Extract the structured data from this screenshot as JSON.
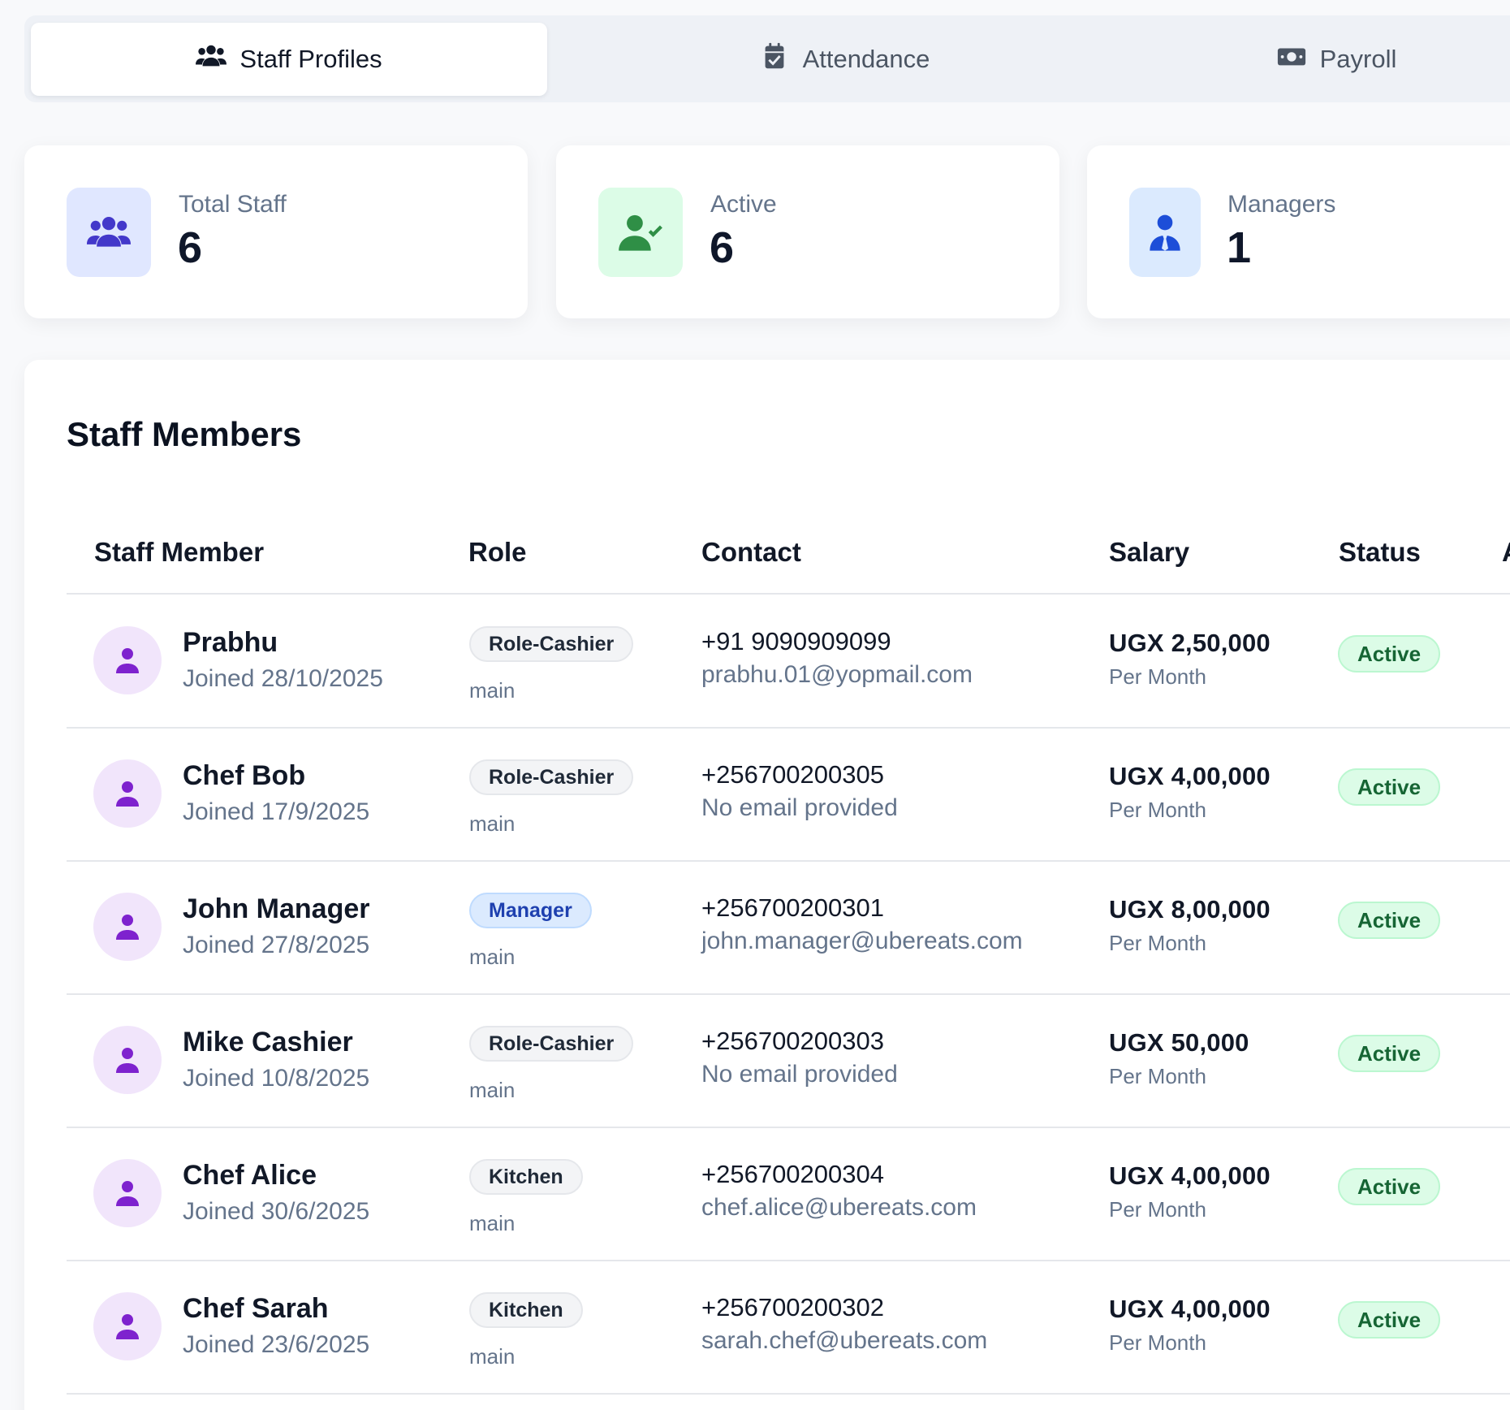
{
  "tabs": [
    {
      "label": "Staff Profiles",
      "icon": "users-icon",
      "active": true
    },
    {
      "label": "Attendance",
      "icon": "calendar-check-icon",
      "active": false
    },
    {
      "label": "Payroll",
      "icon": "money-bill-icon",
      "active": false
    }
  ],
  "stats": [
    {
      "label": "Total Staff",
      "value": "6",
      "icon": "users-icon",
      "icon_bg": "#e0e7ff",
      "icon_color": "#4338ca"
    },
    {
      "label": "Active",
      "value": "6",
      "icon": "user-check-icon",
      "icon_bg": "#dcfce7",
      "icon_color": "#2f8f46"
    },
    {
      "label": "Managers",
      "value": "1",
      "icon": "user-tie-icon",
      "icon_bg": "#dbeafe",
      "icon_color": "#1d4ed8"
    }
  ],
  "table": {
    "title": "Staff Members",
    "columns": [
      "Staff Member",
      "Role",
      "Contact",
      "Salary",
      "Status",
      "A"
    ],
    "rows": [
      {
        "name": "Prabhu",
        "joined": "Joined 28/10/2025",
        "role": "Role-Cashier",
        "branch": "main",
        "phone": "+91 9090909099",
        "email": "prabhu.01@yopmail.com",
        "salary": "UGX 2,50,000",
        "period": "Per Month",
        "status": "Active"
      },
      {
        "name": "Chef Bob",
        "joined": "Joined 17/9/2025",
        "role": "Role-Cashier",
        "branch": "main",
        "phone": "+256700200305",
        "email": "No email provided",
        "salary": "UGX 4,00,000",
        "period": "Per Month",
        "status": "Active"
      },
      {
        "name": "John Manager",
        "joined": "Joined 27/8/2025",
        "role": "Manager",
        "branch": "main",
        "phone": "+256700200301",
        "email": "john.manager@ubereats.com",
        "salary": "UGX 8,00,000",
        "period": "Per Month",
        "status": "Active"
      },
      {
        "name": "Mike Cashier",
        "joined": "Joined 10/8/2025",
        "role": "Role-Cashier",
        "branch": "main",
        "phone": "+256700200303",
        "email": "No email provided",
        "salary": "UGX 50,000",
        "period": "Per Month",
        "status": "Active"
      },
      {
        "name": "Chef Alice",
        "joined": "Joined 30/6/2025",
        "role": "Kitchen",
        "branch": "main",
        "phone": "+256700200304",
        "email": "chef.alice@ubereats.com",
        "salary": "UGX 4,00,000",
        "period": "Per Month",
        "status": "Active"
      },
      {
        "name": "Chef Sarah",
        "joined": "Joined 23/6/2025",
        "role": "Kitchen",
        "branch": "main",
        "phone": "+256700200302",
        "email": "sarah.chef@ubereats.com",
        "salary": "UGX 4,00,000",
        "period": "Per Month",
        "status": "Active"
      }
    ]
  },
  "colors": {
    "avatar_bg": "#f1e5fb",
    "avatar_icon": "#7e22ce",
    "status_active_bg": "#dcfce7",
    "status_active_text": "#166534",
    "manager_badge_bg": "#dbeafe"
  }
}
